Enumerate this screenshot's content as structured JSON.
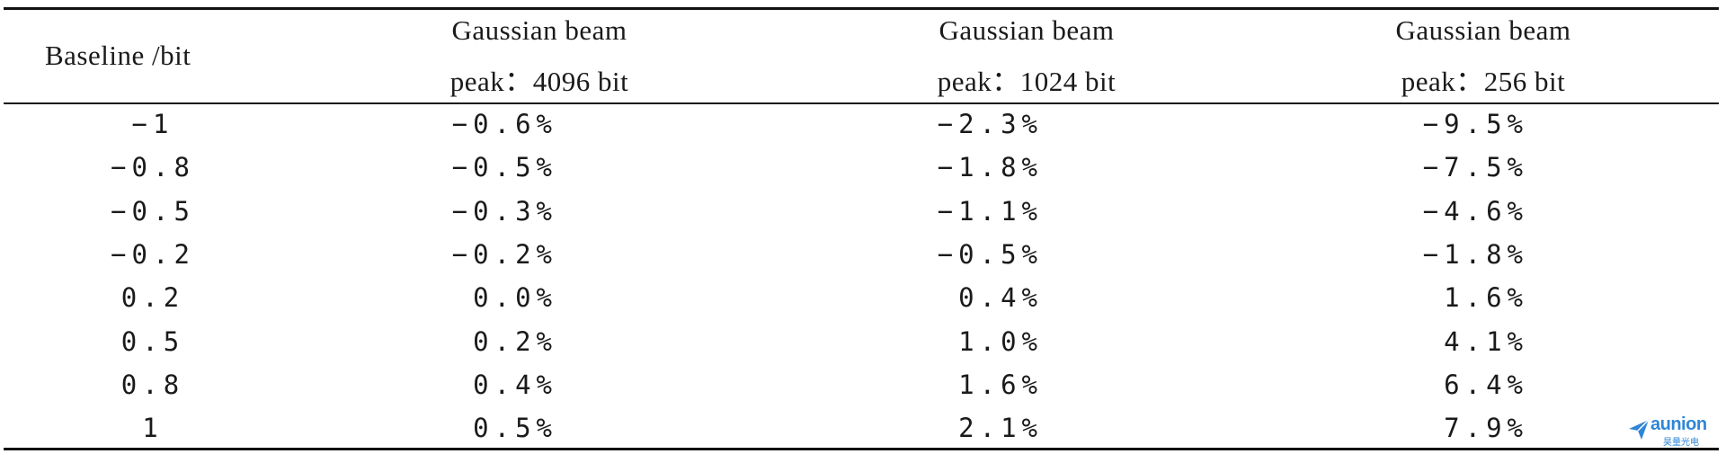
{
  "table": {
    "headers": {
      "col0": "Baseline /bit",
      "col1_line1": "Gaussian beam",
      "col1_line2": "peak：4096 bit",
      "col2_line1": "Gaussian beam",
      "col2_line2": "peak：1024 bit",
      "col3_line1": "Gaussian beam",
      "col3_line2": "peak：256 bit"
    },
    "rows": [
      {
        "baseline": "−1",
        "v4096": "−0.6%",
        "v1024": "−2.3%",
        "v256": "−9.5%"
      },
      {
        "baseline": "−0.8",
        "v4096": "−0.5%",
        "v1024": "−1.8%",
        "v256": "−7.5%"
      },
      {
        "baseline": "−0.5",
        "v4096": "−0.3%",
        "v1024": "−1.1%",
        "v256": "−4.6%"
      },
      {
        "baseline": "−0.2",
        "v4096": "−0.2%",
        "v1024": "−0.5%",
        "v256": "−1.8%"
      },
      {
        "baseline": "0.2",
        "v4096": "0.0%",
        "v1024": "0.4%",
        "v256": "1.6%"
      },
      {
        "baseline": "0.5",
        "v4096": "0.2%",
        "v1024": "1.0%",
        "v256": "4.1%"
      },
      {
        "baseline": "0.8",
        "v4096": "0.4%",
        "v1024": "1.6%",
        "v256": "6.4%"
      },
      {
        "baseline": "1",
        "v4096": "0.5%",
        "v1024": "2.1%",
        "v256": "7.9%"
      }
    ]
  },
  "watermark": {
    "brand": "aunion",
    "subtitle": "昊量光电",
    "icon": "paper-plane-icon",
    "color": "#2f86d6"
  }
}
